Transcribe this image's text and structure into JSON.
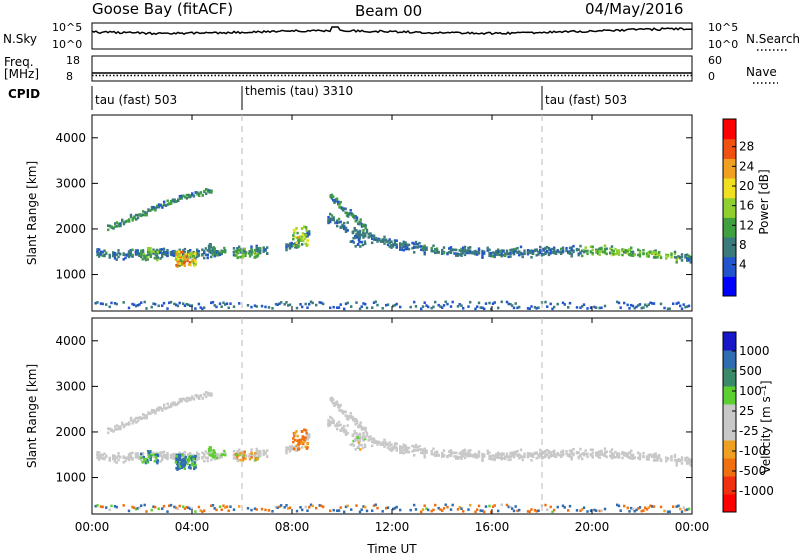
{
  "header": {
    "station": "Goose Bay (fitACF)",
    "beam": "Beam 00",
    "date": "04/May/2016"
  },
  "top_panels": {
    "nsky_label": "N.Sky",
    "nsky_ticks": [
      "10^5",
      "10^0"
    ],
    "nsearch_label": "N.Search",
    "nsearch_ticks": [
      "10^5",
      "10^0"
    ],
    "freq_label_1": "Freq.",
    "freq_label_2": "[MHz]",
    "freq_ticks": [
      "18",
      "8"
    ],
    "nave_label": "Nave",
    "nave_ticks": [
      "60",
      "0"
    ],
    "cpid_label": "CPID",
    "cpid_segments": [
      {
        "label": "tau (fast) 503",
        "start_hour": 0
      },
      {
        "label": "themis (tau) 3310",
        "start_hour": 6
      },
      {
        "label": "tau (fast) 503",
        "start_hour": 18
      }
    ]
  },
  "chart_data": [
    {
      "type": "heatmap",
      "panel": "power",
      "ylabel": "Slant Range [km]",
      "xlim": [
        0,
        24
      ],
      "ylim": [
        200,
        4500
      ],
      "yticks": [
        "1000",
        "2000",
        "3000",
        "4000"
      ],
      "colorbar_label": "Power [dB]",
      "colorbar_ticks": [
        "28",
        "24",
        "20",
        "16",
        "12",
        "8",
        "4"
      ],
      "colorbar_colors": [
        "#0000ff",
        "#2255cc",
        "#3a7a7a",
        "#40a040",
        "#8fd030",
        "#f0e020",
        "#f0a020",
        "#f05010",
        "#ff0000"
      ],
      "features": [
        {
          "name": "main band",
          "points": [
            [
              0.1,
              1450
            ],
            [
              1,
              1400
            ],
            [
              2,
              1450
            ],
            [
              3,
              1450
            ],
            [
              4,
              1450
            ],
            [
              6,
              1500
            ],
            [
              8,
              1600
            ],
            [
              9.5,
              2200
            ],
            [
              10.5,
              1900
            ],
            [
              12,
              1650
            ],
            [
              14,
              1500
            ],
            [
              16,
              1450
            ],
            [
              18,
              1500
            ],
            [
              20,
              1500
            ],
            [
              22,
              1450
            ],
            [
              24,
              1350
            ]
          ]
        },
        {
          "name": "rising arc",
          "points": [
            [
              0.5,
              2000
            ],
            [
              1.5,
              2200
            ],
            [
              2.5,
              2450
            ],
            [
              3.5,
              2650
            ],
            [
              4.5,
              2800
            ]
          ]
        },
        {
          "name": "ground scatter",
          "points": [
            [
              0,
              300
            ],
            [
              24,
              300
            ]
          ]
        }
      ]
    },
    {
      "type": "heatmap",
      "panel": "velocity",
      "ylabel": "Slant Range [km]",
      "xlabel": "Time UT",
      "xlim": [
        0,
        24
      ],
      "ylim": [
        200,
        4500
      ],
      "xticks": [
        "00:00",
        "04:00",
        "08:00",
        "12:00",
        "16:00",
        "20:00",
        "00:00"
      ],
      "yticks": [
        "1000",
        "2000",
        "3000",
        "4000"
      ],
      "colorbar_label": "Velocity [m s⁻¹]",
      "colorbar_ticks": [
        "1000",
        "500",
        "100",
        "25",
        "-25",
        "-100",
        "-500",
        "-1000"
      ],
      "colorbar_colors": [
        "#1818c8",
        "#2f6db0",
        "#3a8a6a",
        "#5cd030",
        "#c8c8c8",
        "#c8c8c8",
        "#f0a020",
        "#f07010",
        "#f03010",
        "#ff0000"
      ]
    }
  ]
}
